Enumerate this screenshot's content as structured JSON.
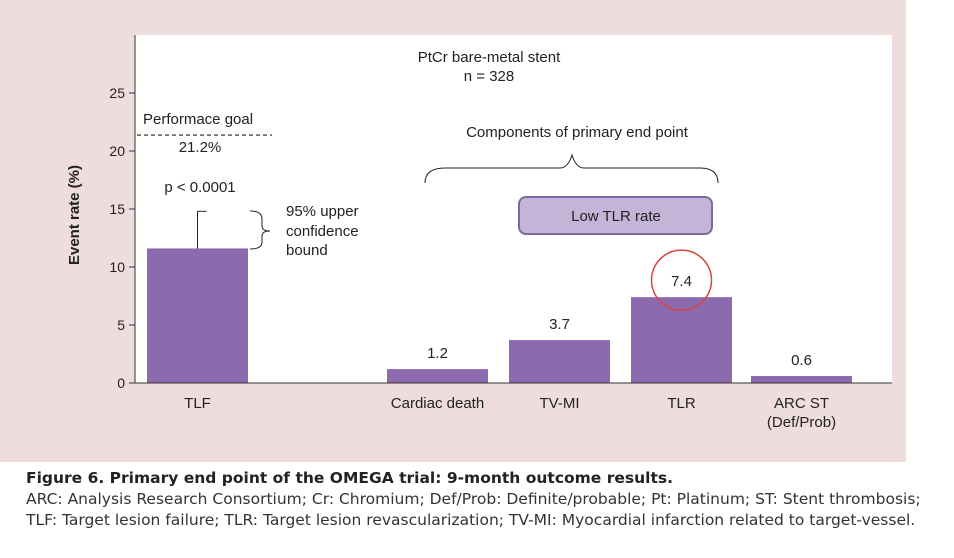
{
  "colors": {
    "panel": "#efdcdc",
    "plot_bg": "#ffffff",
    "bar": "#8b6aae",
    "badge_fill": "#c4b4d8",
    "circle": "#d9443c"
  },
  "header": {
    "line1": "PtCr bare-metal stent",
    "line2": "n = 328"
  },
  "annotations": {
    "performance_goal": "Performace goal",
    "goal_value": "21.2%",
    "p_value": "p < 0.0001",
    "bound_line1": "95% upper",
    "bound_line2": "confidence",
    "bound_line3": "bound",
    "components": "Components of primary end point",
    "badge": "Low TLR rate"
  },
  "chart_data": {
    "type": "bar",
    "ylabel": "Event rate (%)",
    "ylim": [
      0,
      30
    ],
    "yticks": [
      0,
      5,
      10,
      15,
      20,
      25
    ],
    "categories": [
      "TLF",
      "Cardiac death",
      "TV-MI",
      "TLR",
      "ARC ST\n(Def/Prob)"
    ],
    "category_lines": [
      [
        "TLF"
      ],
      [
        "Cardiac death"
      ],
      [
        "TV-MI"
      ],
      [
        "TLR"
      ],
      [
        "ARC ST",
        "(Def/Prob)"
      ]
    ],
    "values": [
      11.6,
      1.2,
      3.7,
      7.4,
      0.6
    ],
    "data_labels": [
      null,
      "1.2",
      "3.7",
      "7.4",
      "0.6"
    ],
    "performance_goal": 21.2,
    "upper_confidence_bound": 14.8,
    "highlighted_category": "TLR"
  },
  "caption": {
    "title": "Figure 6. Primary end point of the OMEGA trial: 9-month outcome results.",
    "body": "ARC: Analysis Research Consortium; Cr: Chromium; Def/Prob: Definite/probable; Pt: Platinum; ST: Stent thrombosis; TLF: Target lesion failure; TLR: Target lesion revascularization; TV-MI: Myocardial infarction related to target-vessel."
  }
}
